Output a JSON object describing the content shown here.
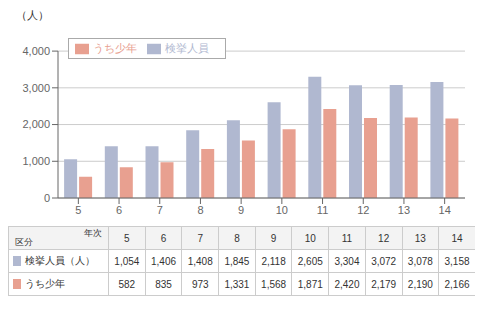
{
  "chart_data": {
    "type": "bar",
    "categories": [
      "5",
      "6",
      "7",
      "8",
      "9",
      "10",
      "11",
      "12",
      "13",
      "14"
    ],
    "series": [
      {
        "name": "検挙人員",
        "color": "#b0b8d0",
        "values": [
          1054,
          1406,
          1408,
          1845,
          2118,
          2605,
          3304,
          3072,
          3078,
          3158
        ],
        "value_labels": [
          "1,054",
          "1,406",
          "1,408",
          "1,845",
          "2,118",
          "2,605",
          "3,304",
          "3,072",
          "3,078",
          "3,158"
        ]
      },
      {
        "name": "うち少年",
        "color": "#e8a090",
        "values": [
          582,
          835,
          973,
          1331,
          1568,
          1871,
          2420,
          2179,
          2190,
          2166
        ],
        "value_labels": [
          "582",
          "835",
          "973",
          "1,331",
          "1,568",
          "1,871",
          "2,420",
          "2,179",
          "2,190",
          "2,166"
        ]
      }
    ],
    "ylabel": "（人）",
    "ylim": [
      0,
      4000
    ],
    "yticks": [
      0,
      {
        "value": 1000,
        "label": "1,000"
      },
      {
        "value": 2000,
        "label": "2,000"
      },
      {
        "value": 3000,
        "label": "3,000"
      },
      {
        "value": 4000,
        "label": "4,000"
      }
    ],
    "grid": true,
    "legend": "upper left",
    "table": {
      "corner_labels": [
        "年次",
        "区分"
      ],
      "row_labels": [
        "検挙人員（人）",
        "うち少年"
      ]
    }
  }
}
